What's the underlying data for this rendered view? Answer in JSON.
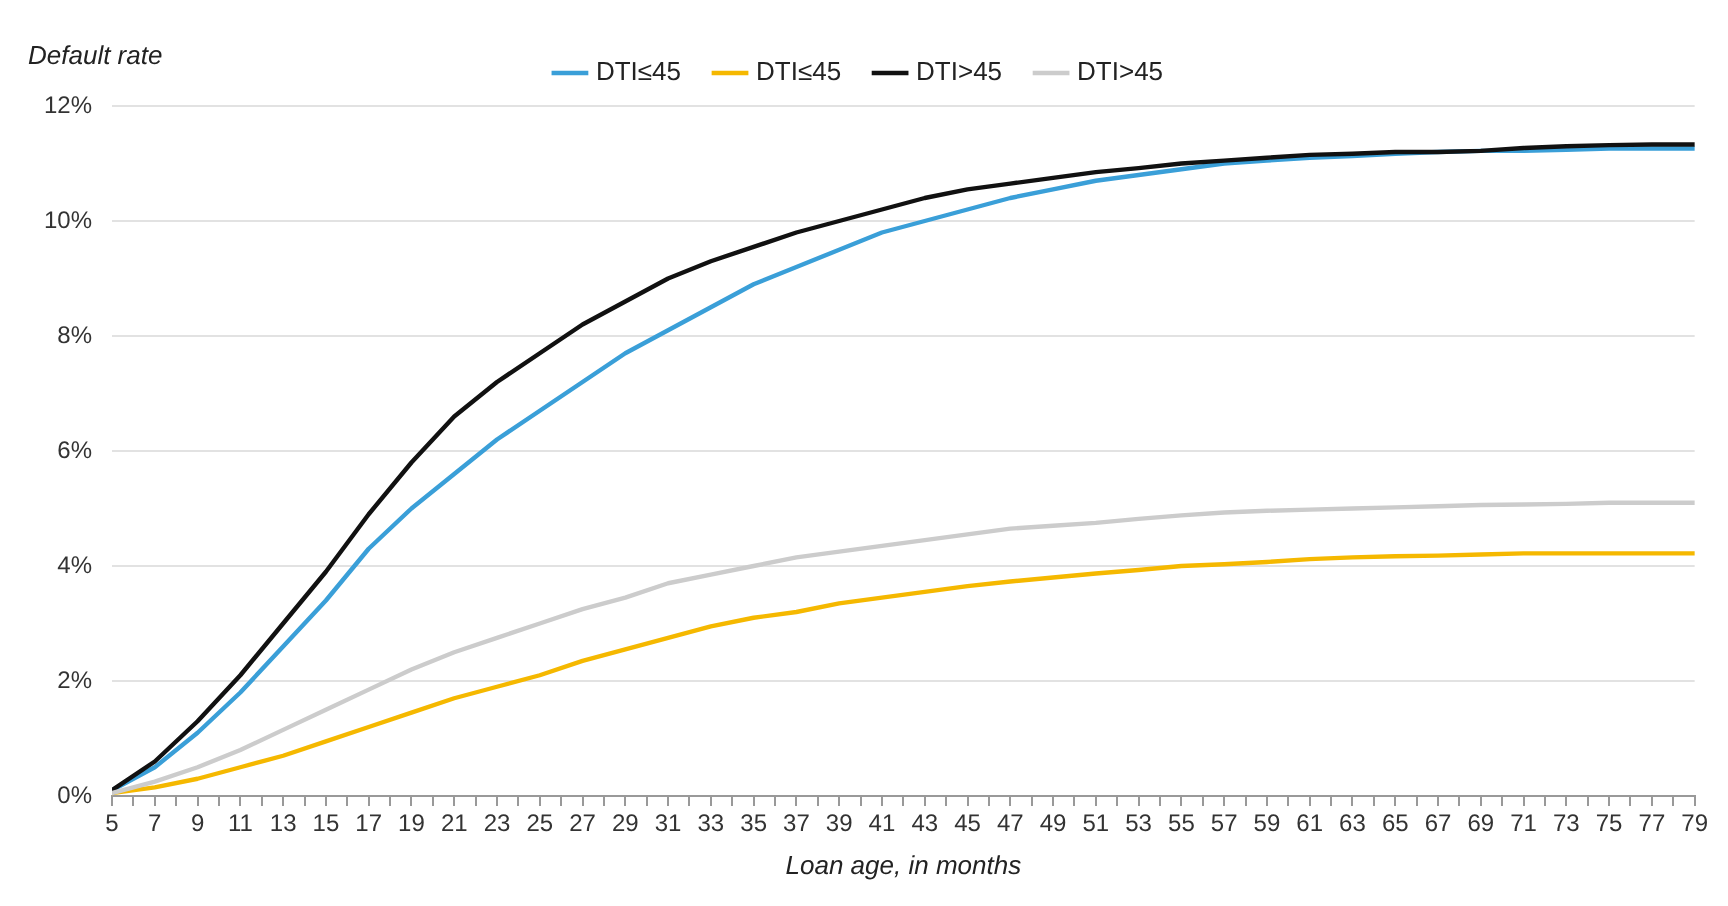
{
  "chart_data": {
    "type": "line",
    "xlabel": "Loan age, in months",
    "ylabel": "Default rate",
    "x": [
      5,
      7,
      9,
      11,
      13,
      15,
      17,
      19,
      21,
      23,
      25,
      27,
      29,
      31,
      33,
      35,
      37,
      39,
      41,
      43,
      45,
      47,
      49,
      51,
      53,
      55,
      57,
      59,
      61,
      63,
      65,
      67,
      69,
      71,
      73,
      75,
      77,
      79
    ],
    "xlim": [
      5,
      79
    ],
    "xticks": [
      5,
      {
        "value": 6,
        "label": null
      },
      7,
      {
        "value": 8,
        "label": null
      },
      9,
      {
        "value": 10,
        "label": null
      },
      11,
      {
        "value": 12,
        "label": null
      },
      13,
      {
        "value": 14,
        "label": null
      },
      15,
      {
        "value": 16,
        "label": null
      },
      17,
      {
        "value": 18,
        "label": null
      },
      19,
      {
        "value": 20,
        "label": null
      },
      21,
      {
        "value": 22,
        "label": null
      },
      23,
      {
        "value": 24,
        "label": null
      },
      25,
      {
        "value": 26,
        "label": null
      },
      27,
      {
        "value": 28,
        "label": null
      },
      29,
      {
        "value": 30,
        "label": null
      },
      31,
      {
        "value": 32,
        "label": null
      },
      33,
      {
        "value": 34,
        "label": null
      },
      35,
      {
        "value": 36,
        "label": null
      },
      37,
      {
        "value": 38,
        "label": null
      },
      39,
      {
        "value": 40,
        "label": null
      },
      41,
      {
        "value": 42,
        "label": null
      },
      43,
      {
        "value": 44,
        "label": null
      },
      45,
      {
        "value": 46,
        "label": null
      },
      47,
      {
        "value": 48,
        "label": null
      },
      49,
      {
        "value": 50,
        "label": null
      },
      51,
      {
        "value": 52,
        "label": null
      },
      53,
      {
        "value": 54,
        "label": null
      },
      55,
      {
        "value": 56,
        "label": null
      },
      57,
      {
        "value": 58,
        "label": null
      },
      59,
      {
        "value": 60,
        "label": null
      },
      61,
      {
        "value": 62,
        "label": null
      },
      63,
      {
        "value": 64,
        "label": null
      },
      65,
      {
        "value": 66,
        "label": null
      },
      67,
      {
        "value": 68,
        "label": null
      },
      69,
      {
        "value": 70,
        "label": null
      },
      71,
      {
        "value": 72,
        "label": null
      },
      73,
      {
        "value": 74,
        "label": null
      },
      75,
      {
        "value": 76,
        "label": null
      },
      77,
      {
        "value": 78,
        "label": null
      },
      79
    ],
    "ylim": [
      0,
      12
    ],
    "yticks": [
      {
        "value": 0,
        "label": "0%"
      },
      {
        "value": 2,
        "label": "2%"
      },
      {
        "value": 4,
        "label": "4%"
      },
      {
        "value": 6,
        "label": "6%"
      },
      {
        "value": 8,
        "label": "8%"
      },
      {
        "value": 10,
        "label": "10%"
      },
      {
        "value": 12,
        "label": "12%"
      }
    ],
    "grid": "y",
    "legend": "top",
    "marker": "none",
    "line_style": "solid",
    "series": [
      {
        "name": "DTI≤45",
        "color": "#3a9fd8",
        "values": [
          0.1,
          0.5,
          1.1,
          1.8,
          2.6,
          3.4,
          4.3,
          5.0,
          5.6,
          6.2,
          6.7,
          7.2,
          7.7,
          8.1,
          8.5,
          8.9,
          9.2,
          9.5,
          9.8,
          10.0,
          10.2,
          10.4,
          10.55,
          10.7,
          10.8,
          10.9,
          11.0,
          11.05,
          11.1,
          11.13,
          11.17,
          11.2,
          11.22,
          11.22,
          11.24,
          11.26,
          11.26,
          11.26
        ]
      },
      {
        "name": "DTI≤45",
        "color": "#f5b800",
        "values": [
          0.05,
          0.15,
          0.3,
          0.5,
          0.7,
          0.95,
          1.2,
          1.45,
          1.7,
          1.9,
          2.1,
          2.35,
          2.55,
          2.75,
          2.95,
          3.1,
          3.2,
          3.35,
          3.45,
          3.55,
          3.65,
          3.73,
          3.8,
          3.87,
          3.93,
          4.0,
          4.03,
          4.07,
          4.12,
          4.15,
          4.17,
          4.18,
          4.2,
          4.22,
          4.22,
          4.22,
          4.22,
          4.22
        ]
      },
      {
        "name": "DTI>45",
        "color": "#111111",
        "values": [
          0.1,
          0.6,
          1.3,
          2.1,
          3.0,
          3.9,
          4.9,
          5.8,
          6.6,
          7.2,
          7.7,
          8.2,
          8.6,
          9.0,
          9.3,
          9.55,
          9.8,
          10.0,
          10.2,
          10.4,
          10.55,
          10.65,
          10.75,
          10.85,
          10.92,
          11.0,
          11.05,
          11.1,
          11.15,
          11.17,
          11.2,
          11.2,
          11.22,
          11.27,
          11.3,
          11.32,
          11.33,
          11.33
        ]
      },
      {
        "name": "DTI>45",
        "color": "#cccccc",
        "values": [
          0.05,
          0.25,
          0.5,
          0.8,
          1.15,
          1.5,
          1.85,
          2.2,
          2.5,
          2.75,
          3.0,
          3.25,
          3.45,
          3.7,
          3.85,
          4.0,
          4.15,
          4.25,
          4.35,
          4.45,
          4.55,
          4.65,
          4.7,
          4.75,
          4.82,
          4.88,
          4.93,
          4.96,
          4.98,
          5.0,
          5.02,
          5.04,
          5.06,
          5.07,
          5.08,
          5.1,
          5.1,
          5.1
        ]
      }
    ]
  }
}
